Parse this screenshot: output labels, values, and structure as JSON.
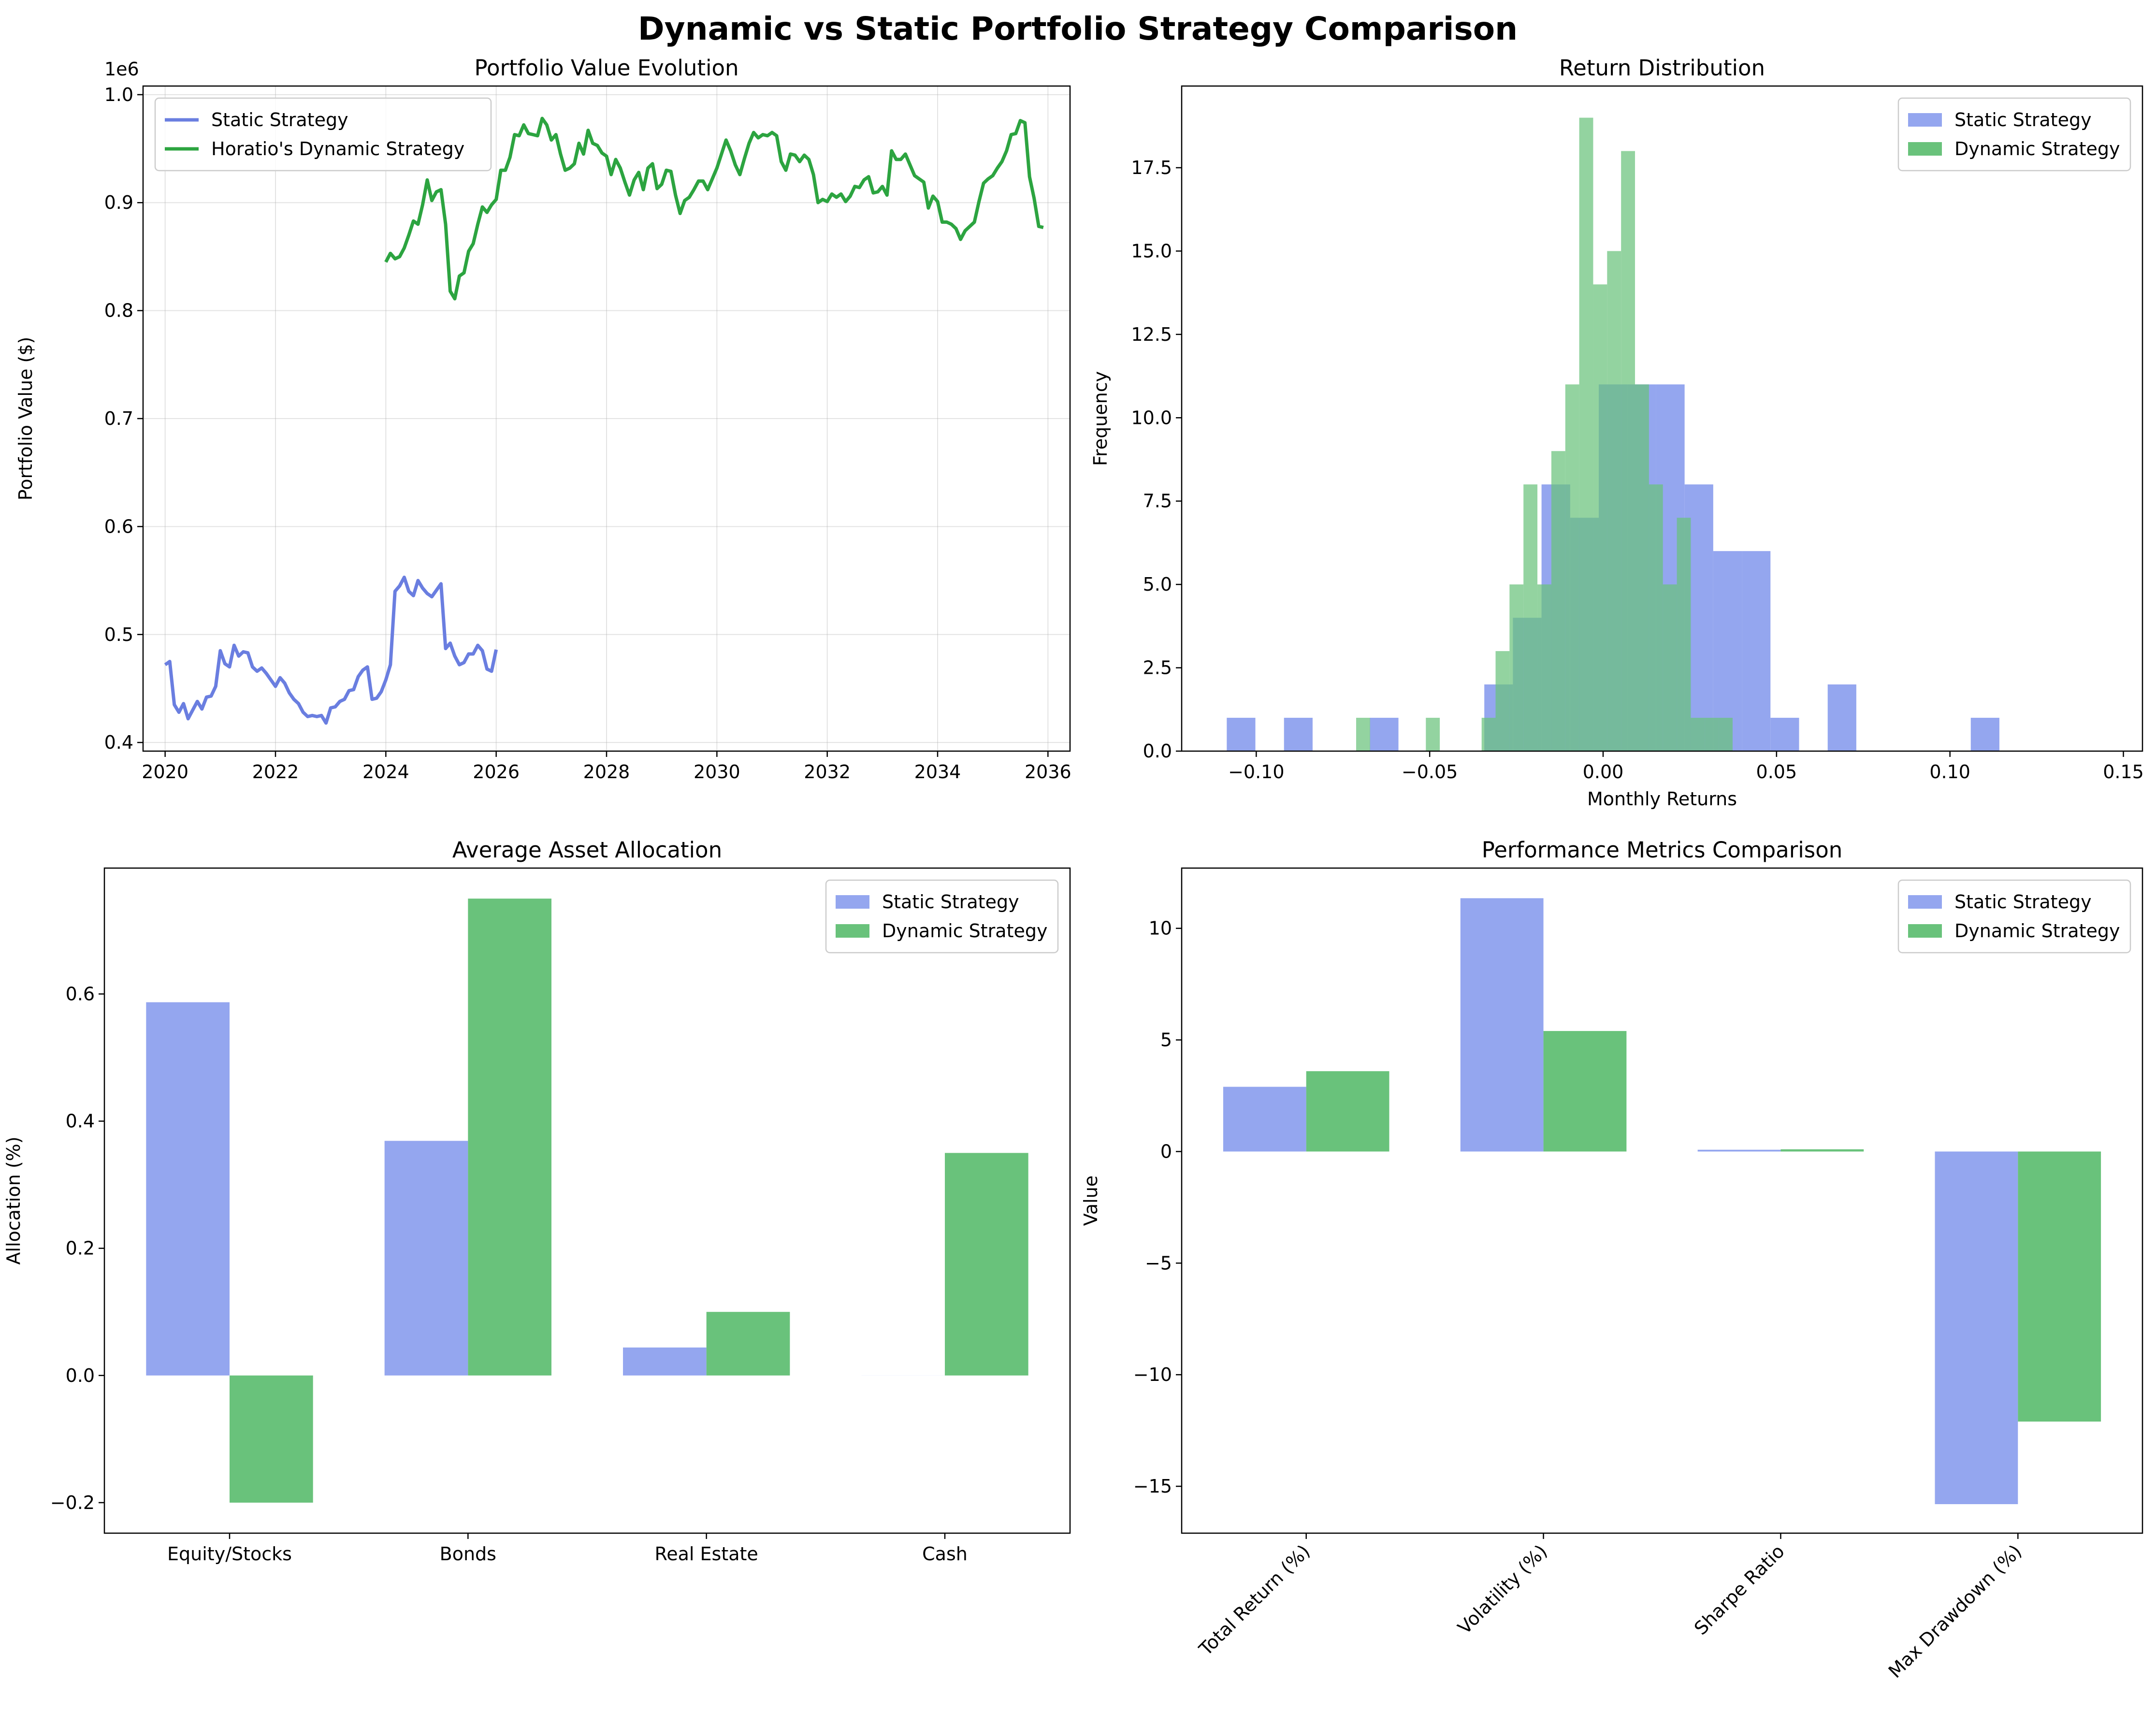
{
  "suptitle": "Dynamic vs Static Portfolio Strategy Comparison",
  "colors": {
    "static": "#6a7ee0",
    "dynamic": "#2ca440",
    "static_bar": "#94a6ef",
    "dynamic_bar": "#69c27b"
  },
  "chart_data": [
    {
      "id": "portfolio-value",
      "type": "line",
      "title": "Portfolio Value Evolution",
      "xlabel": "",
      "ylabel": "Portfolio Value ($)",
      "offset_label": "1e6",
      "xlim": [
        2019.6,
        2036.4
      ],
      "ylim": [
        0.392,
        1.008
      ],
      "xticks": [
        2020,
        2022,
        2024,
        2026,
        2028,
        2030,
        2032,
        2034,
        2036
      ],
      "yticks": [
        0.4,
        0.5,
        0.6,
        0.7,
        0.8,
        0.9,
        1.0
      ],
      "ytick_labels": [
        "0.4",
        "0.5",
        "0.6",
        "0.7",
        "0.8",
        "0.9",
        "1.0"
      ],
      "grid": true,
      "legend_position": "upper left",
      "series": [
        {
          "name": "Static Strategy",
          "color_key": "static",
          "x_start": 2020.0,
          "x_step": 0.08333,
          "values": [
            0.472,
            0.475,
            0.435,
            0.428,
            0.436,
            0.422,
            0.43,
            0.438,
            0.431,
            0.442,
            0.443,
            0.452,
            0.485,
            0.473,
            0.47,
            0.49,
            0.48,
            0.484,
            0.483,
            0.47,
            0.466,
            0.469,
            0.464,
            0.458,
            0.452,
            0.46,
            0.455,
            0.446,
            0.44,
            0.436,
            0.428,
            0.424,
            0.425,
            0.424,
            0.425,
            0.418,
            0.432,
            0.433,
            0.438,
            0.44,
            0.448,
            0.449,
            0.461,
            0.467,
            0.47,
            0.44,
            0.441,
            0.447,
            0.458,
            0.472,
            0.54,
            0.545,
            0.553,
            0.54,
            0.536,
            0.55,
            0.543,
            0.538,
            0.535,
            0.541,
            0.547,
            0.487,
            0.492,
            0.48,
            0.472,
            0.474,
            0.482,
            0.482,
            0.49,
            0.485,
            0.468,
            0.466,
            0.486
          ]
        },
        {
          "name": "Horatio's Dynamic Strategy",
          "color_key": "dynamic",
          "x_start": 2024.0,
          "x_step": 0.08333,
          "values": [
            0.845,
            0.853,
            0.848,
            0.85,
            0.858,
            0.87,
            0.883,
            0.88,
            0.898,
            0.921,
            0.902,
            0.91,
            0.912,
            0.88,
            0.818,
            0.811,
            0.832,
            0.835,
            0.855,
            0.862,
            0.88,
            0.896,
            0.891,
            0.898,
            0.903,
            0.93,
            0.93,
            0.942,
            0.963,
            0.962,
            0.972,
            0.964,
            0.963,
            0.962,
            0.978,
            0.972,
            0.958,
            0.963,
            0.945,
            0.93,
            0.932,
            0.936,
            0.955,
            0.945,
            0.967,
            0.955,
            0.953,
            0.946,
            0.943,
            0.926,
            0.94,
            0.932,
            0.919,
            0.907,
            0.921,
            0.928,
            0.912,
            0.932,
            0.936,
            0.913,
            0.917,
            0.93,
            0.929,
            0.907,
            0.89,
            0.902,
            0.905,
            0.912,
            0.92,
            0.92,
            0.912,
            0.922,
            0.932,
            0.945,
            0.958,
            0.948,
            0.935,
            0.926,
            0.941,
            0.955,
            0.965,
            0.96,
            0.963,
            0.962,
            0.965,
            0.962,
            0.938,
            0.93,
            0.945,
            0.944,
            0.938,
            0.944,
            0.94,
            0.926,
            0.9,
            0.903,
            0.901,
            0.908,
            0.905,
            0.908,
            0.901,
            0.906,
            0.915,
            0.914,
            0.921,
            0.924,
            0.909,
            0.91,
            0.915,
            0.907,
            0.948,
            0.94,
            0.94,
            0.945,
            0.935,
            0.925,
            0.922,
            0.919,
            0.895,
            0.906,
            0.901,
            0.882,
            0.882,
            0.88,
            0.876,
            0.866,
            0.874,
            0.878,
            0.882,
            0.901,
            0.918,
            0.922,
            0.925,
            0.932,
            0.938,
            0.948,
            0.963,
            0.964,
            0.976,
            0.974,
            0.924,
            0.904,
            0.878,
            0.877
          ]
        }
      ]
    },
    {
      "id": "return-distribution",
      "type": "histogram",
      "title": "Return Distribution",
      "xlabel": "Monthly Returns",
      "ylabel": "Frequency",
      "xlim": [
        -0.1215,
        0.1555
      ],
      "ylim": [
        0,
        19.95
      ],
      "xticks": [
        -0.1,
        -0.05,
        0.0,
        0.05,
        0.1,
        0.15
      ],
      "xtick_labels": [
        "−0.10",
        "−0.05",
        "0.00",
        "0.05",
        "0.10",
        "0.15"
      ],
      "yticks": [
        0,
        2.5,
        5,
        7.5,
        10,
        12.5,
        15,
        17.5
      ],
      "ytick_labels": [
        "0.0",
        "2.5",
        "5.0",
        "7.5",
        "10.0",
        "12.5",
        "15.0",
        "17.5"
      ],
      "legend_position": "upper right",
      "series": [
        {
          "name": "Static Strategy",
          "color_key": "static_bar",
          "bin_start": -0.1085,
          "bin_width": 0.00825,
          "counts": [
            1,
            0,
            1,
            0,
            0,
            1,
            0,
            0,
            0,
            2,
            4,
            8,
            7,
            11,
            11,
            11,
            8,
            6,
            6,
            1,
            0,
            2,
            0,
            0,
            0,
            0,
            1,
            0,
            0,
            0,
            0,
            0,
            0,
            0,
            0,
            0,
            0,
            0,
            0,
            0,
            0,
            0,
            0,
            0,
            0,
            1
          ]
        },
        {
          "name": "Dynamic Strategy",
          "color_key": "dynamic_bar",
          "bin_start": -0.0712,
          "bin_width": 0.00402,
          "counts": [
            1,
            0,
            0,
            0,
            0,
            1,
            0,
            0,
            0,
            1,
            3,
            5,
            8,
            5,
            9,
            11,
            19,
            14,
            15,
            18,
            11,
            8,
            5,
            7,
            1,
            1,
            1
          ]
        }
      ]
    },
    {
      "id": "asset-allocation",
      "type": "bar",
      "title": "Average Asset Allocation",
      "xlabel": "",
      "ylabel": "Allocation (%)",
      "ylim": [
        -0.248,
        0.798
      ],
      "yticks": [
        -0.2,
        0.0,
        0.2,
        0.4,
        0.6
      ],
      "ytick_labels": [
        "−0.2",
        "0.0",
        "0.2",
        "0.4",
        "0.6"
      ],
      "categories": [
        "Equity/Stocks",
        "Bonds",
        "Real Estate",
        "Cash"
      ],
      "legend_position": "upper right",
      "series": [
        {
          "name": "Static Strategy",
          "color_key": "static_bar",
          "values": [
            0.587,
            0.369,
            0.044,
            0.0
          ]
        },
        {
          "name": "Dynamic Strategy",
          "color_key": "dynamic_bar",
          "values": [
            -0.2,
            0.75,
            0.1,
            0.35
          ]
        }
      ]
    },
    {
      "id": "performance-metrics",
      "type": "bar",
      "title": "Performance Metrics Comparison",
      "xlabel": "",
      "ylabel": "Value",
      "ylim": [
        -17.1,
        12.7
      ],
      "yticks": [
        -15,
        -10,
        -5,
        0,
        5,
        10
      ],
      "ytick_labels": [
        "−15",
        "−10",
        "−5",
        "0",
        "5",
        "10"
      ],
      "categories": [
        "Total Return (%)",
        "Volatility (%)",
        "Sharpe Ratio",
        "Max Drawdown (%)"
      ],
      "rotated_labels": true,
      "legend_position": "upper right",
      "series": [
        {
          "name": "Static Strategy",
          "color_key": "static_bar",
          "values": [
            2.9,
            11.35,
            0.08,
            -15.8
          ]
        },
        {
          "name": "Dynamic Strategy",
          "color_key": "dynamic_bar",
          "values": [
            3.6,
            5.4,
            0.1,
            -12.1
          ]
        }
      ]
    }
  ]
}
